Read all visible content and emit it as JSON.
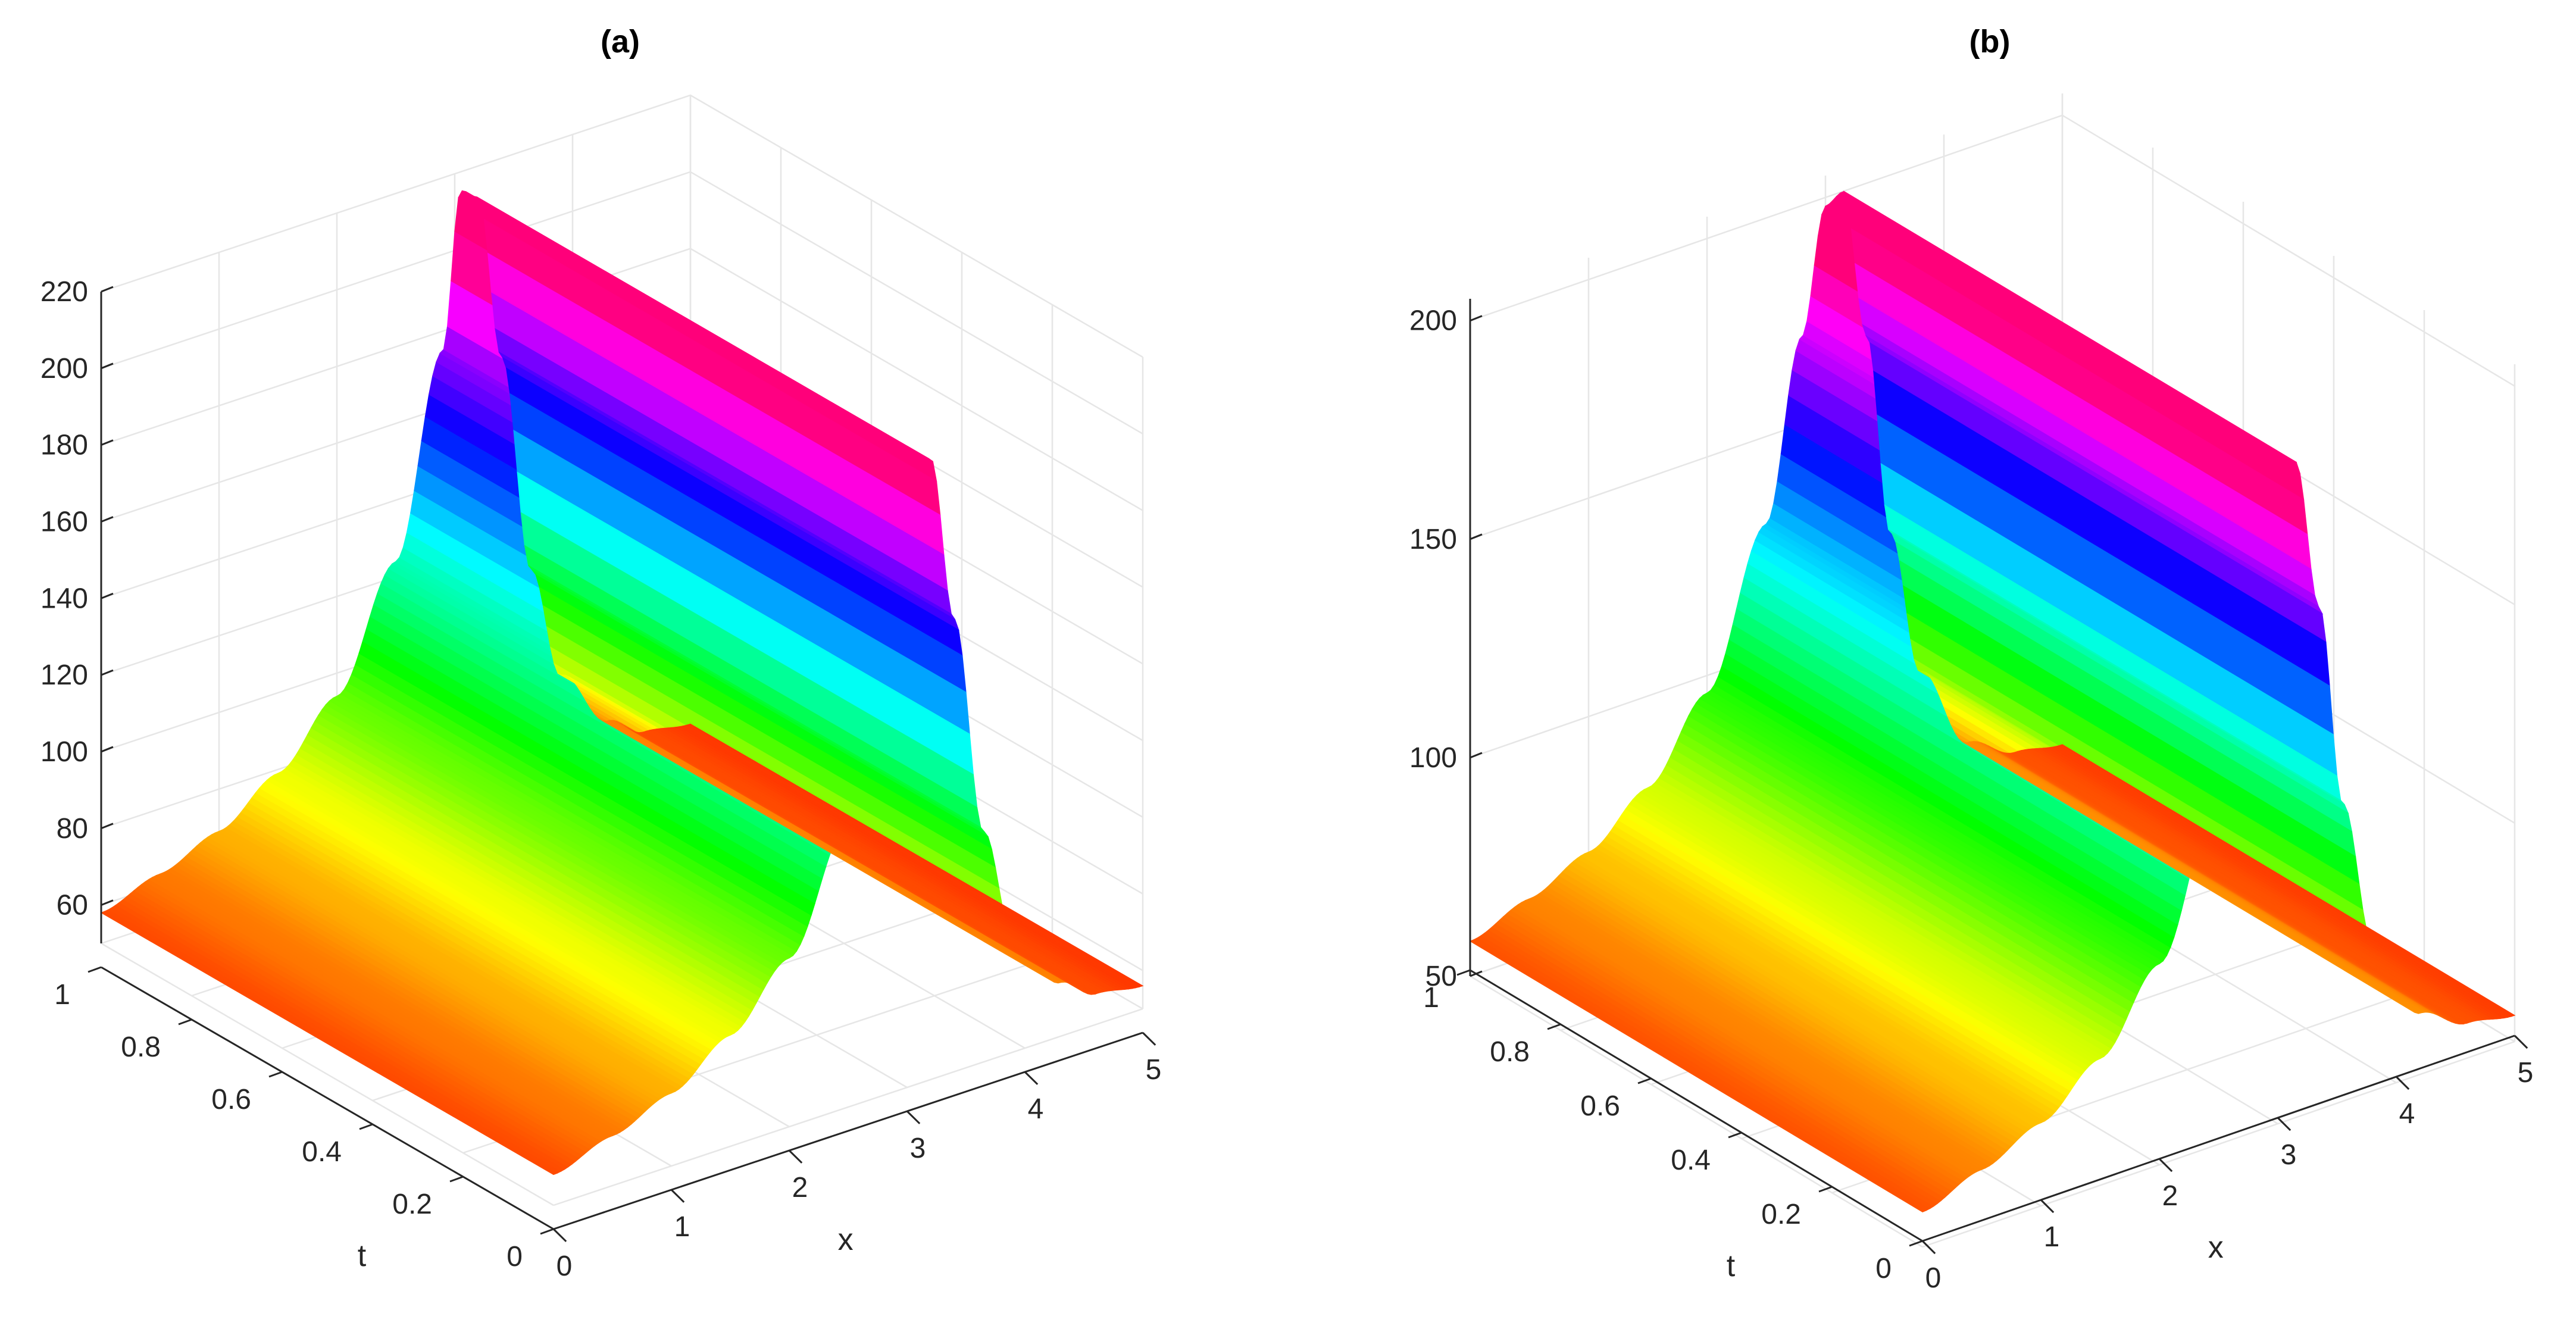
{
  "chart_data": [
    {
      "type": "surface",
      "title": "(a)",
      "xlabel": "x",
      "ylabel": "t",
      "zlabel": "",
      "xlim": [
        0,
        5
      ],
      "ylim": [
        0,
        1
      ],
      "zlim": [
        50,
        220
      ],
      "x_ticks": [
        0,
        1,
        2,
        3,
        4,
        5
      ],
      "t_ticks": [
        0,
        0.2,
        0.4,
        0.6,
        0.8,
        1
      ],
      "t_tick_labels": [
        "0",
        "0.2",
        "0.4",
        "0.6",
        "0.8",
        "1"
      ],
      "z_ticks": [
        60,
        80,
        100,
        120,
        140,
        160,
        180,
        200,
        220
      ],
      "grid": true,
      "colormap": "hsv",
      "profile": {
        "x": [
          0,
          0.5,
          1.0,
          1.5,
          2.0,
          2.5,
          2.9,
          3.05,
          3.2,
          3.4,
          3.65,
          3.9,
          4.3,
          4.6,
          5.0
        ],
        "u": [
          58,
          63,
          69,
          79,
          94,
          124,
          175,
          215,
          212,
          168,
          110,
          80,
          64,
          58,
          56
        ]
      }
    },
    {
      "type": "surface",
      "title": "(b)",
      "xlabel": "x",
      "ylabel": "t",
      "zlabel": "",
      "xlim": [
        0,
        5
      ],
      "ylim": [
        0,
        1
      ],
      "zlim": [
        50,
        205
      ],
      "x_ticks": [
        0,
        1,
        2,
        3,
        4,
        5
      ],
      "t_ticks": [
        0,
        0.2,
        0.4,
        0.6,
        0.8,
        1
      ],
      "t_tick_labels": [
        "0",
        "0.2",
        "0.4",
        "0.6",
        "0.8",
        "1"
      ],
      "z_ticks": [
        50,
        100,
        150,
        200
      ],
      "grid": true,
      "colormap": "hsv",
      "profile": {
        "x": [
          0,
          0.5,
          1.0,
          1.5,
          2.0,
          2.5,
          2.8,
          3.0,
          3.15,
          3.35,
          3.55,
          3.8,
          4.2,
          4.6,
          5.0
        ],
        "u": [
          58,
          63,
          69,
          79,
          96,
          130,
          170,
          198,
          200,
          165,
          118,
          84,
          64,
          58,
          56
        ]
      }
    }
  ]
}
